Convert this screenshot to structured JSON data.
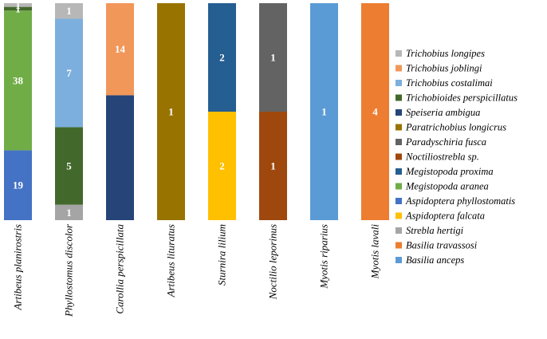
{
  "chart_data": {
    "type": "bar",
    "stacked": true,
    "normalized": true,
    "title": "",
    "xlabel": "",
    "ylabel": "",
    "legend_position": "right",
    "categories": [
      "Artibeus planirostris",
      "Phyllostomus discolor",
      "Carollia perspicillata",
      "Artibeus lituratus",
      "Sturnira lilium",
      "Noctilio leporinus",
      "Myotis riparius",
      "Myotis lavali"
    ],
    "series": [
      {
        "name": "Basilia anceps",
        "color": "#5b9bd5",
        "values": [
          0,
          0,
          0,
          0,
          0,
          0,
          1,
          0
        ]
      },
      {
        "name": "Basilia travassosi",
        "color": "#ed7d31",
        "values": [
          0,
          0,
          0,
          0,
          0,
          0,
          0,
          4
        ]
      },
      {
        "name": "Strebla hertigi",
        "color": "#a5a5a5",
        "values": [
          0,
          1,
          0,
          0,
          0,
          0,
          0,
          0
        ]
      },
      {
        "name": "Aspidoptera falcata",
        "color": "#ffc000",
        "values": [
          0,
          0,
          0,
          0,
          2,
          0,
          0,
          0
        ]
      },
      {
        "name": "Aspidoptera phyllostomatis",
        "color": "#4472c4",
        "values": [
          19,
          0,
          0,
          0,
          0,
          0,
          0,
          0
        ]
      },
      {
        "name": "Megistopoda aranea",
        "color": "#70ad47",
        "values": [
          38,
          0,
          0,
          0,
          0,
          0,
          0,
          0
        ]
      },
      {
        "name": "Megistopoda proxima",
        "color": "#255e91",
        "values": [
          0,
          0,
          0,
          0,
          2,
          0,
          0,
          0
        ]
      },
      {
        "name": "Noctiliostrebla sp.",
        "color": "#9e480e",
        "values": [
          0,
          0,
          0,
          0,
          0,
          1,
          0,
          0
        ]
      },
      {
        "name": "Paradyschiria fusca",
        "color": "#636363",
        "values": [
          0,
          0,
          0,
          0,
          0,
          1,
          0,
          0
        ]
      },
      {
        "name": "Paratrichobius longicrus",
        "color": "#997300",
        "values": [
          0,
          0,
          0,
          1,
          0,
          0,
          0,
          0
        ]
      },
      {
        "name": "Speiseria ambigua",
        "color": "#264478",
        "values": [
          0,
          0,
          19,
          0,
          0,
          0,
          0,
          0
        ]
      },
      {
        "name": "Trichobioides perspicillatus",
        "color": "#43682b",
        "values": [
          1,
          5,
          0,
          0,
          0,
          0,
          0,
          0
        ]
      },
      {
        "name": "Trichobius costalimai",
        "color": "#7cafdd",
        "values": [
          0,
          7,
          0,
          0,
          0,
          0,
          0,
          0
        ]
      },
      {
        "name": "Trichobius joblingi",
        "color": "#f1975a",
        "values": [
          0,
          0,
          14,
          0,
          0,
          0,
          0,
          0
        ]
      },
      {
        "name": "Trichobius longipes",
        "color": "#b7b7b7",
        "values": [
          1,
          1,
          0,
          0,
          0,
          0,
          0,
          0
        ]
      }
    ],
    "visible_value_labels": [
      [
        false,
        false,
        false,
        false,
        true,
        true,
        false,
        false,
        false,
        false,
        false,
        true,
        false,
        false,
        true
      ],
      [
        false,
        false,
        true,
        false,
        false,
        false,
        false,
        false,
        false,
        false,
        false,
        true,
        true,
        false,
        true
      ],
      [
        false,
        false,
        false,
        false,
        false,
        false,
        false,
        false,
        false,
        false,
        false,
        false,
        false,
        true,
        false
      ],
      [
        false,
        false,
        false,
        false,
        false,
        false,
        false,
        false,
        false,
        true,
        false,
        false,
        false,
        false,
        false
      ],
      [
        false,
        false,
        false,
        true,
        false,
        false,
        true,
        false,
        false,
        false,
        false,
        false,
        false,
        false,
        false
      ],
      [
        false,
        false,
        false,
        false,
        false,
        false,
        false,
        true,
        true,
        false,
        false,
        false,
        false,
        false,
        false
      ],
      [
        true,
        false,
        false,
        false,
        false,
        false,
        false,
        false,
        false,
        false,
        false,
        false,
        false,
        false,
        false
      ],
      [
        false,
        true,
        false,
        false,
        false,
        false,
        false,
        false,
        false,
        false,
        false,
        false,
        false,
        false,
        false
      ]
    ],
    "legend_order": [
      "Trichobius longipes",
      "Trichobius joblingi",
      "Trichobius costalimai",
      "Trichobioides perspicillatus",
      "Speiseria ambigua",
      "Paratrichobius longicrus",
      "Paradyschiria fusca",
      "Noctiliostrebla sp.",
      "Megistopoda proxima",
      "Megistopoda aranea",
      "Aspidoptera phyllostomatis",
      "Aspidoptera falcata",
      "Strebla hertigi",
      "Basilia travassosi",
      "Basilia anceps"
    ]
  }
}
